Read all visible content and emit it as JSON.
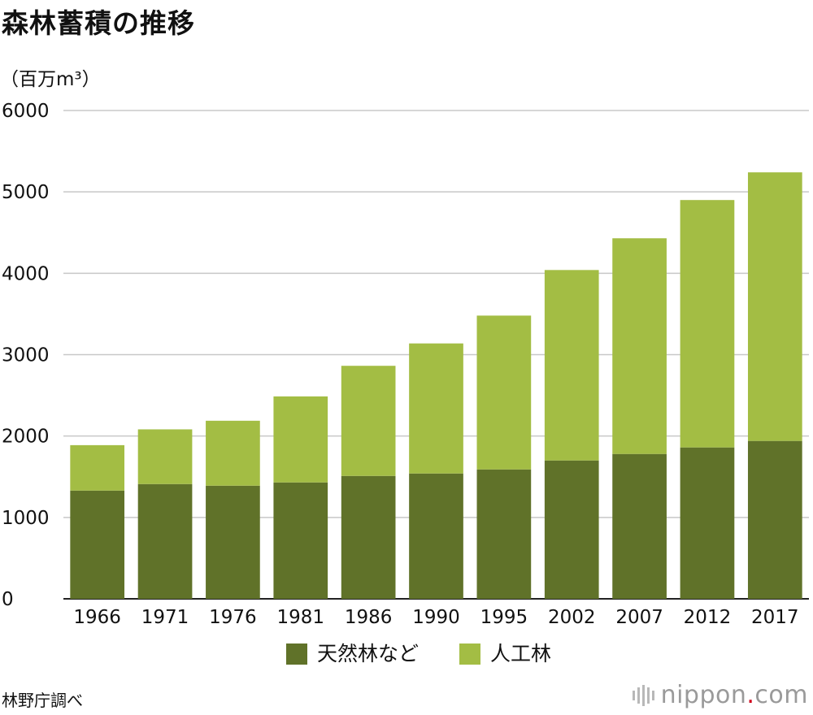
{
  "title": "森林蓄積の推移",
  "source": "林野庁調べ",
  "brand": {
    "name": "nippon",
    "dot": ".",
    "tld": "com",
    "icon": "bars-logo-icon",
    "accent": "#d0021b"
  },
  "chart_data": {
    "type": "bar",
    "stacked": true,
    "unit_label": "（百万m³）",
    "categories": [
      "1966",
      "1971",
      "1976",
      "1981",
      "1986",
      "1990",
      "1995",
      "2002",
      "2007",
      "2012",
      "2017"
    ],
    "series": [
      {
        "name": "天然林など",
        "color": "#607229",
        "values": [
          1330,
          1410,
          1390,
          1430,
          1510,
          1540,
          1590,
          1700,
          1780,
          1860,
          1940
        ]
      },
      {
        "name": "人工林",
        "color": "#a3bd44",
        "values": [
          558,
          672,
          798,
          1057,
          1353,
          1598,
          1890,
          2340,
          2650,
          3040,
          3300
        ]
      }
    ],
    "ylim": [
      0,
      6000
    ],
    "yticks": [
      0,
      1000,
      2000,
      3000,
      4000,
      5000,
      6000
    ],
    "grid": true,
    "legend_position": "bottom-center"
  }
}
